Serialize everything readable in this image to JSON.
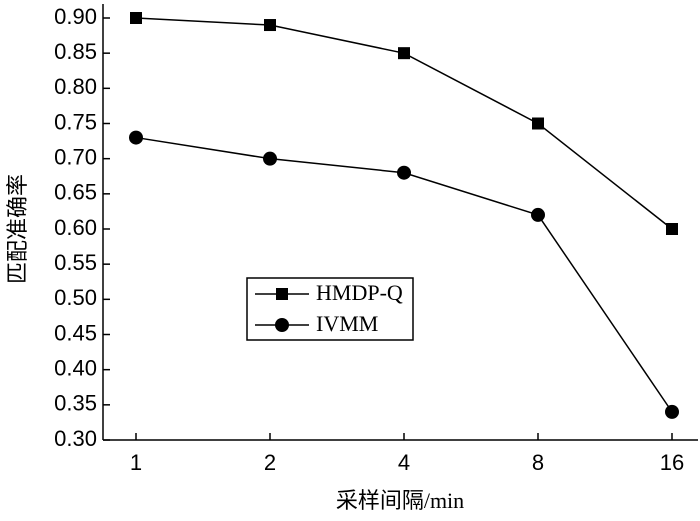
{
  "chart_data": {
    "type": "line",
    "x_label": "采样间隔/min",
    "y_label": "匹配准确率",
    "categories": [
      "1",
      "2",
      "4",
      "8",
      "16"
    ],
    "series": [
      {
        "name": "HMDP-Q",
        "color": "#000000",
        "marker": "square",
        "values": [
          0.9,
          0.89,
          0.85,
          0.75,
          0.6
        ]
      },
      {
        "name": "IVMM",
        "color": "#000000",
        "marker": "circle",
        "values": [
          0.73,
          0.7,
          0.68,
          0.62,
          0.34
        ]
      }
    ],
    "ylim": [
      0.3,
      0.9
    ],
    "yticks": [
      {
        "value": 0.3,
        "label": "0.30"
      },
      0.35,
      {
        "value": 0.4,
        "label": "0.40"
      },
      0.45,
      {
        "value": 0.5,
        "label": "0.50"
      },
      0.55,
      {
        "value": 0.6,
        "label": "0.60"
      },
      0.65,
      {
        "value": 0.7,
        "label": "0.70"
      },
      0.75,
      {
        "value": 0.8,
        "label": "0.80"
      },
      0.85,
      {
        "value": 0.9,
        "label": "0.90"
      }
    ],
    "legend": "center-left",
    "grid": false
  }
}
